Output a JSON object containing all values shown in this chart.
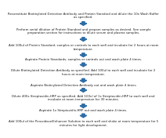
{
  "background_color": "#ffffff",
  "arrow_color": "#2e6da4",
  "text_color": "#1a1a1a",
  "steps": [
    "Reconstitute Biotinylated Detection Antibody and Protein Standard and dilute the 10x Wash Buffer\nas specified.",
    "Perform serial dilution of Protein Standard and prepare samples as desired. See sample\npreparation section for instructions to dilute serum and plasma samples.",
    "Add 100ul of Protein Standard, samples or controls to each well and incubate for 2 hours at room\ntemperature.",
    "Aspirate Protein Standards, samples or controls out and wash plate 4 times.",
    "Dilute Biotinylated Detection Antibody as specified. Add 100ul to each well and incubate for 2\nhours at room temperature.",
    "Aspirate Biotinylated Detection Antibody out and wash plate 4 times.",
    "Dilute 400x Streptavidin-HRP as specified. Add 100ul of 1x Streptavidin-HRP to each well and\nincubate at room temperature for 30 minutes.",
    "Aspirate 1x Streptavidin-HRP out and wash plate 4 times.",
    "Add 100ul of the Peroxidase/Enhancer Solution to each well and shake at room temperature for 5\nminutes for light development."
  ],
  "fontsize": 2.8,
  "linespacing": 1.25
}
